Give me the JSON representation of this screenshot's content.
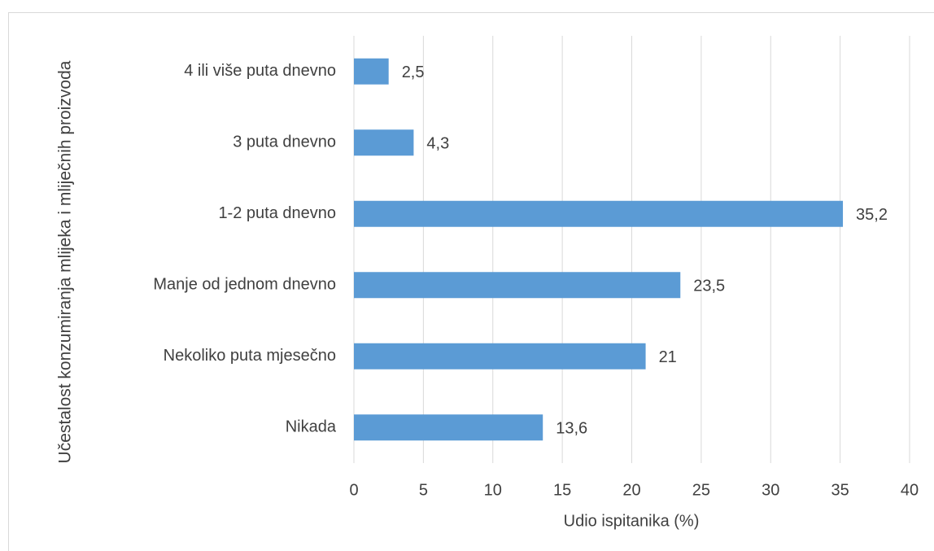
{
  "chart_data": {
    "type": "bar",
    "orientation": "horizontal",
    "x_label": "Udio ispitanika (%)",
    "y_label": "Učestalost konzumiranja mlijeka i mliječnih proizvoda",
    "categories": [
      "4 ili više puta dnevno",
      "3 puta dnevno",
      "1-2 puta dnevno",
      "Manje od jednom dnevno",
      "Nekoliko puta mjesečno",
      "Nikada"
    ],
    "values": [
      2.5,
      4.3,
      35.2,
      23.5,
      21,
      13.6
    ],
    "value_labels": [
      "2,5",
      "4,3",
      "35,2",
      "23,5",
      "21",
      "13,6"
    ],
    "color": "#5b9bd5",
    "xlim": [
      0,
      40
    ],
    "xticks": [
      0,
      5,
      10,
      15,
      20,
      25,
      30,
      35,
      40
    ],
    "grid": true
  }
}
